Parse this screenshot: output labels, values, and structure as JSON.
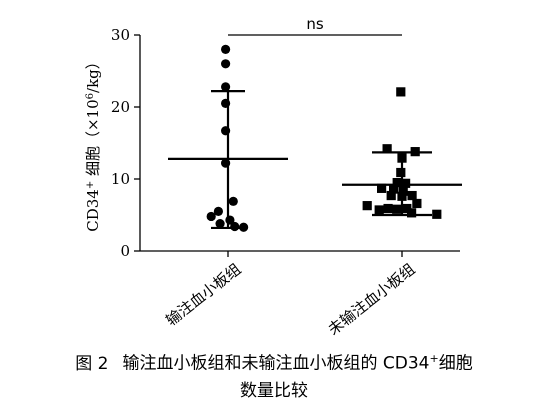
{
  "chart_data": {
    "type": "scatter",
    "ylabel": "CD34⁺ 细胞（×10⁶/kg）",
    "ylabel_main": "CD34",
    "ylabel_sup": "+",
    "ylabel_cell": " 细胞（×10",
    "ylabel_exp": "6",
    "ylabel_unit": "/kg）",
    "ylim": [
      0,
      30
    ],
    "yticks": [
      0,
      10,
      20,
      30
    ],
    "yticklabels": [
      "0",
      "10",
      "20",
      "30"
    ],
    "categories": [
      "输注血小板组",
      "未输注血小板组"
    ],
    "significance": "ns",
    "series": [
      {
        "category": "输注血小板组",
        "marker": "circle",
        "mean": 12.8,
        "sd_upper": 22.2,
        "sd_lower": 3.2,
        "points": [
          {
            "offset": -0.1,
            "y": 28.0
          },
          {
            "offset": -0.1,
            "y": 26.0
          },
          {
            "offset": -0.1,
            "y": 22.8
          },
          {
            "offset": -0.1,
            "y": 20.5
          },
          {
            "offset": -0.1,
            "y": 16.7
          },
          {
            "offset": -0.1,
            "y": 12.2
          },
          {
            "offset": 0.22,
            "y": 6.9
          },
          {
            "offset": -0.7,
            "y": 4.8
          },
          {
            "offset": -0.4,
            "y": 5.5
          },
          {
            "offset": 0.28,
            "y": 3.4
          },
          {
            "offset": -0.33,
            "y": 3.8
          },
          {
            "offset": 0.08,
            "y": 4.3
          },
          {
            "offset": 0.65,
            "y": 3.3
          }
        ]
      },
      {
        "category": "未输注血小板组",
        "marker": "square",
        "mean": 9.2,
        "sd_upper": 13.7,
        "sd_lower": 5.0,
        "points": [
          {
            "offset": -0.05,
            "y": 22.1
          },
          {
            "offset": -0.62,
            "y": 14.2
          },
          {
            "offset": 0.55,
            "y": 13.8
          },
          {
            "offset": 0.0,
            "y": 12.9
          },
          {
            "offset": -0.05,
            "y": 10.9
          },
          {
            "offset": -0.2,
            "y": 9.5
          },
          {
            "offset": 0.15,
            "y": 9.4
          },
          {
            "offset": -0.85,
            "y": 8.7
          },
          {
            "offset": -0.35,
            "y": 8.6
          },
          {
            "offset": 0.05,
            "y": 8.3
          },
          {
            "offset": -0.45,
            "y": 7.7
          },
          {
            "offset": 0.0,
            "y": 7.6
          },
          {
            "offset": 0.42,
            "y": 7.7
          },
          {
            "offset": -1.45,
            "y": 6.3
          },
          {
            "offset": -0.95,
            "y": 5.7
          },
          {
            "offset": -0.58,
            "y": 5.9
          },
          {
            "offset": -0.22,
            "y": 5.8
          },
          {
            "offset": 0.2,
            "y": 5.9
          },
          {
            "offset": 0.62,
            "y": 6.6
          },
          {
            "offset": 0.4,
            "y": 5.3
          },
          {
            "offset": 1.45,
            "y": 5.1
          }
        ]
      }
    ],
    "grid": false,
    "legend": "none"
  },
  "caption": {
    "label": "图 2",
    "line1_pre": "输注血小板组和未输注血小板组的 CD34",
    "line1_sup": "+",
    "line1_post": "细胞",
    "line2": "数量比较"
  }
}
